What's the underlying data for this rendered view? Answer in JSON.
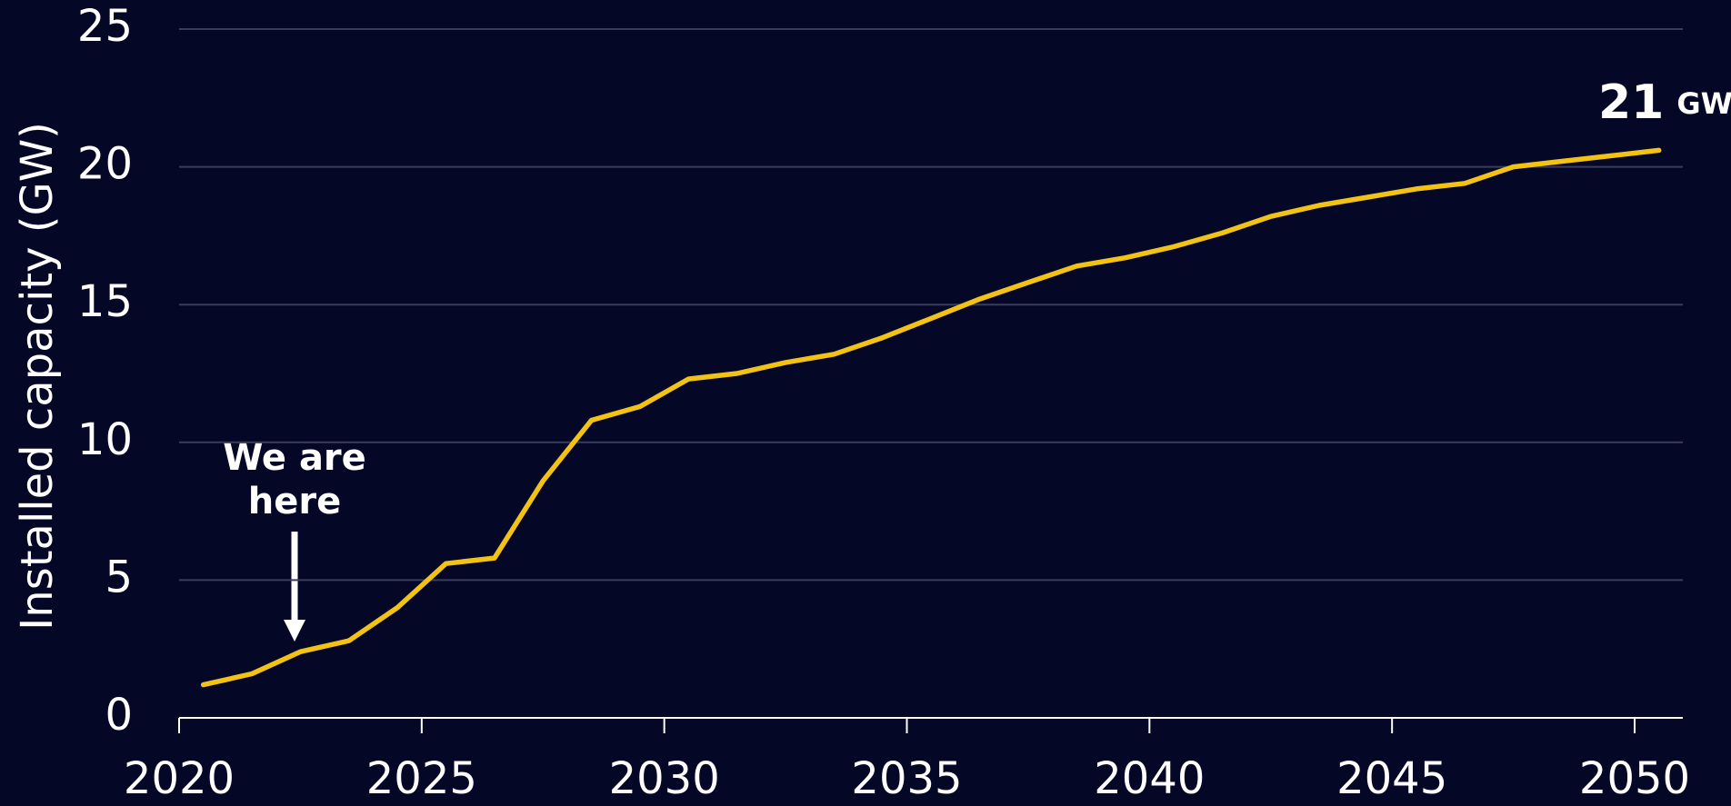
{
  "chart_data": {
    "type": "line",
    "y_label": "Installed capacity (GW)",
    "x": [
      2020.5,
      2021.5,
      2022.5,
      2023.5,
      2024.5,
      2025.5,
      2026.5,
      2027.5,
      2028.5,
      2029.5,
      2030.5,
      2031.5,
      2032.5,
      2033.5,
      2034.5,
      2035.5,
      2036.5,
      2037.5,
      2038.5,
      2039.5,
      2040.5,
      2041.5,
      2042.5,
      2043.5,
      2044.5,
      2045.5,
      2046.5,
      2047.5,
      2048.5,
      2049.5,
      2050.5
    ],
    "values": [
      1.2,
      1.6,
      2.4,
      2.8,
      4.0,
      5.6,
      5.8,
      8.6,
      10.8,
      11.3,
      12.3,
      12.5,
      12.9,
      13.2,
      13.8,
      14.5,
      15.2,
      15.8,
      16.4,
      16.7,
      17.1,
      17.6,
      18.2,
      18.6,
      18.9,
      19.2,
      19.4,
      20.0,
      20.2,
      20.4,
      20.6
    ],
    "value_labels": [
      null,
      null,
      null,
      null,
      null,
      null,
      null,
      null,
      null,
      null,
      null,
      null,
      null,
      null,
      null,
      null,
      null,
      null,
      null,
      null,
      null,
      null,
      null,
      null,
      null,
      null,
      null,
      null,
      null,
      null,
      "21"
    ],
    "value_label_unit": "GW",
    "color": "#f2c314",
    "annotation": [
      "We are",
      "here"
    ],
    "xlim": [
      2020,
      2050
    ],
    "xticks": [
      2020,
      2025,
      2030,
      2035,
      2040,
      2045,
      2050
    ],
    "ylim": [
      0,
      25
    ],
    "yticks": [
      0,
      5,
      10,
      15,
      20,
      25
    ],
    "grid": true
  }
}
